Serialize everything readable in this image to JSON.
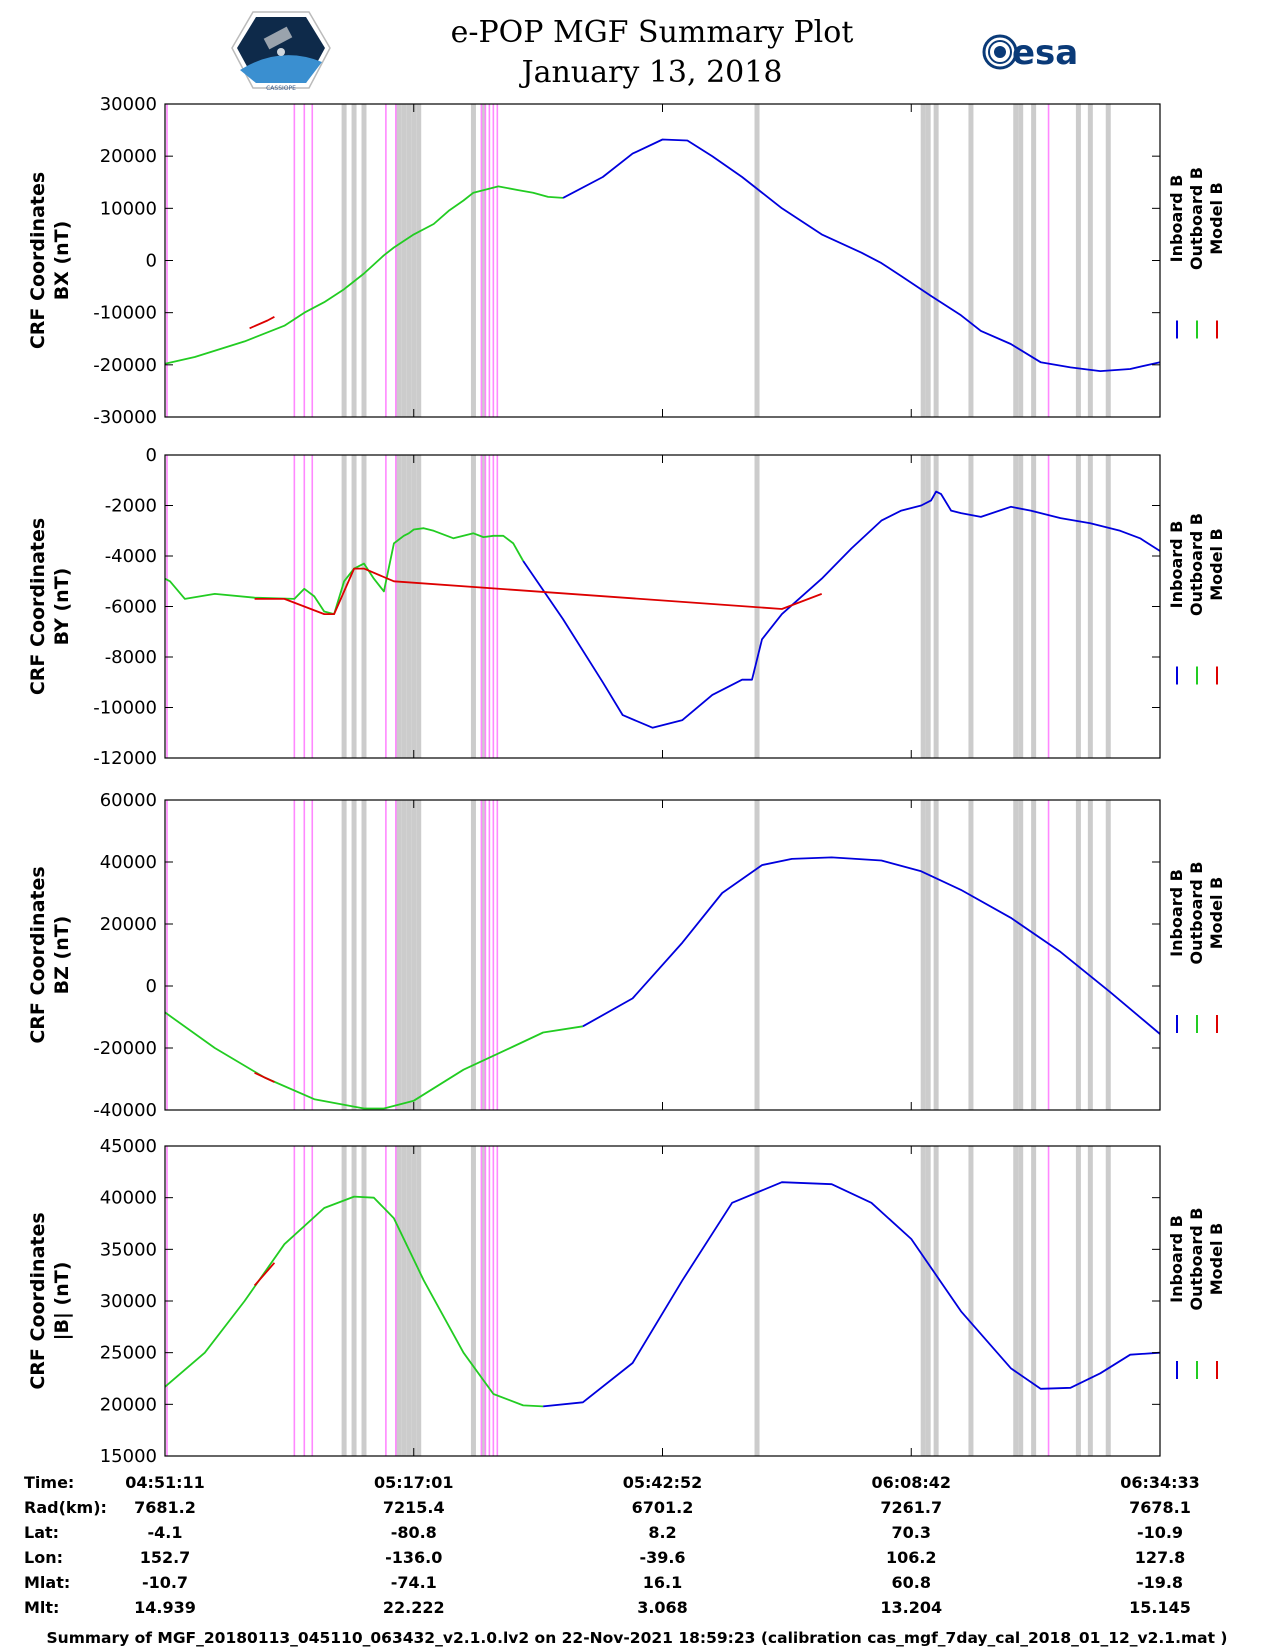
{
  "header": {
    "title": "e-POP MGF Summary Plot",
    "date": "January 13, 2018",
    "left_logo": "CASSIOPE",
    "right_logo": "esa"
  },
  "legend": [
    "Inboard B",
    "Outboard B",
    "Model B"
  ],
  "colors": {
    "inboard": "#0000dd",
    "outboard": "#22cc22",
    "model": "#dd0000",
    "gray_band": "#cccccc",
    "pink_line": "#ff88ff"
  },
  "chart_data": [
    {
      "type": "line",
      "ylabel": [
        "CRF Coordinates",
        "BX (nT)"
      ],
      "ylim": [
        -30000,
        30000
      ],
      "yticks": [
        30000,
        20000,
        10000,
        0,
        -10000,
        -20000,
        -30000
      ],
      "series": [
        {
          "name": "Outboard B",
          "x": [
            0,
            0.03,
            0.08,
            0.12,
            0.14,
            0.16,
            0.18,
            0.2,
            0.22,
            0.23,
            0.25,
            0.27,
            0.285,
            0.3,
            0.31,
            0.335,
            0.355,
            0.37,
            0.385,
            0.4
          ],
          "y": [
            -19800,
            -18500,
            -15500,
            -12500,
            -10000,
            -8000,
            -5500,
            -2500,
            1000,
            2500,
            5000,
            7000,
            9500,
            11500,
            13000,
            14200,
            13500,
            13000,
            12200,
            12000
          ]
        },
        {
          "name": "Inboard B",
          "x": [
            0.4,
            0.44,
            0.47,
            0.5,
            0.525,
            0.55,
            0.58,
            0.62,
            0.66,
            0.7,
            0.72,
            0.74,
            0.77,
            0.8,
            0.82,
            0.85,
            0.88,
            0.91,
            0.94,
            0.97,
            1.0
          ],
          "y": [
            12000,
            16000,
            20500,
            23200,
            23000,
            20000,
            16000,
            10000,
            5000,
            1500,
            -500,
            -3000,
            -6800,
            -10500,
            -13500,
            -16000,
            -19500,
            -20500,
            -21200,
            -20800,
            -19500
          ]
        },
        {
          "name": "Model B",
          "x": [
            0.085,
            0.103,
            0.11
          ],
          "y": [
            -13000,
            -11500,
            -10800
          ]
        }
      ]
    },
    {
      "type": "line",
      "ylabel": [
        "CRF Coordinates",
        "BY (nT)"
      ],
      "ylim": [
        -12000,
        0
      ],
      "yticks": [
        0,
        -2000,
        -4000,
        -6000,
        -8000,
        -10000,
        -12000
      ],
      "series": [
        {
          "name": "Outboard B",
          "x": [
            0,
            0.005,
            0.02,
            0.05,
            0.09,
            0.13,
            0.14,
            0.15,
            0.16,
            0.17,
            0.18,
            0.19,
            0.2,
            0.21,
            0.22,
            0.23,
            0.24,
            0.245,
            0.25,
            0.26,
            0.27,
            0.29,
            0.31,
            0.32,
            0.33,
            0.34,
            0.35,
            0.36
          ],
          "y": [
            -4900,
            -5000,
            -5700,
            -5500,
            -5650,
            -5700,
            -5300,
            -5600,
            -6200,
            -6300,
            -5000,
            -4500,
            -4300,
            -4900,
            -5400,
            -3500,
            -3200,
            -3100,
            -2950,
            -2900,
            -3000,
            -3300,
            -3100,
            -3250,
            -3200,
            -3200,
            -3500,
            -4200
          ]
        },
        {
          "name": "Inboard B",
          "x": [
            0.36,
            0.4,
            0.44,
            0.46,
            0.49,
            0.52,
            0.55,
            0.58,
            0.59,
            0.6,
            0.62,
            0.66,
            0.69,
            0.72,
            0.74,
            0.76,
            0.77,
            0.775,
            0.78,
            0.79,
            0.8,
            0.82,
            0.85,
            0.87,
            0.9,
            0.93,
            0.96,
            0.98,
            1.0
          ],
          "y": [
            -4200,
            -6500,
            -9000,
            -10300,
            -10800,
            -10500,
            -9500,
            -8900,
            -8900,
            -7300,
            -6300,
            -4900,
            -3700,
            -2600,
            -2200,
            -2000,
            -1800,
            -1450,
            -1550,
            -2200,
            -2300,
            -2450,
            -2050,
            -2200,
            -2500,
            -2700,
            -3000,
            -3300,
            -3800
          ]
        },
        {
          "name": "Model B",
          "x": [
            0.09,
            0.12,
            0.16,
            0.17,
            0.19,
            0.2,
            0.23,
            0.62,
            0.66
          ],
          "y": [
            -5700,
            -5700,
            -6300,
            -6300,
            -4500,
            -4500,
            -5000,
            -6100,
            -5500
          ]
        }
      ]
    },
    {
      "type": "line",
      "ylabel": [
        "CRF Coordinates",
        "BZ (nT)"
      ],
      "ylim": [
        -40000,
        60000
      ],
      "yticks": [
        60000,
        40000,
        20000,
        0,
        -20000,
        -40000
      ],
      "series": [
        {
          "name": "Outboard B",
          "x": [
            0,
            0.05,
            0.1,
            0.15,
            0.2,
            0.22,
            0.25,
            0.3,
            0.35,
            0.38,
            0.42
          ],
          "y": [
            -8500,
            -20000,
            -29500,
            -36500,
            -39500,
            -39500,
            -37000,
            -27000,
            -19500,
            -15000,
            -13000
          ]
        },
        {
          "name": "Inboard B",
          "x": [
            0.42,
            0.47,
            0.52,
            0.56,
            0.6,
            0.63,
            0.67,
            0.72,
            0.76,
            0.8,
            0.85,
            0.9,
            0.95,
            1.0
          ],
          "y": [
            -13000,
            -4000,
            14000,
            30000,
            39000,
            41000,
            41500,
            40500,
            37000,
            31000,
            22000,
            11000,
            -2000,
            -15500
          ]
        },
        {
          "name": "Model B",
          "x": [
            0.09,
            0.11
          ],
          "y": [
            -28000,
            -31000
          ]
        }
      ]
    },
    {
      "type": "line",
      "ylabel": [
        "CRF Coordinates",
        "|B| (nT)"
      ],
      "ylim": [
        15000,
        45000
      ],
      "yticks": [
        45000,
        40000,
        35000,
        30000,
        25000,
        20000,
        15000
      ],
      "series": [
        {
          "name": "Outboard B",
          "x": [
            0,
            0.04,
            0.08,
            0.12,
            0.16,
            0.19,
            0.21,
            0.23,
            0.26,
            0.3,
            0.33,
            0.36,
            0.38
          ],
          "y": [
            21700,
            25000,
            30000,
            35500,
            39000,
            40100,
            40000,
            38000,
            32000,
            25000,
            21000,
            19900,
            19800
          ]
        },
        {
          "name": "Inboard B",
          "x": [
            0.38,
            0.42,
            0.47,
            0.52,
            0.57,
            0.62,
            0.67,
            0.71,
            0.75,
            0.8,
            0.85,
            0.88,
            0.91,
            0.94,
            0.97,
            1.0
          ],
          "y": [
            19800,
            20200,
            24000,
            32000,
            39500,
            41500,
            41300,
            39500,
            36000,
            29000,
            23500,
            21500,
            21600,
            23000,
            24800,
            25000
          ]
        },
        {
          "name": "Model B",
          "x": [
            0.09,
            0.11
          ],
          "y": [
            31500,
            33700
          ]
        }
      ]
    }
  ],
  "vertical_markers": {
    "gray": [
      0.18,
      0.19,
      0.2,
      0.235,
      0.24,
      0.245,
      0.25,
      0.255,
      0.31,
      0.32,
      0.595,
      0.762,
      0.767,
      0.775,
      0.81,
      0.855,
      0.86,
      0.873,
      0.918,
      0.93,
      0.948
    ],
    "pink": [
      0.002,
      0.13,
      0.14,
      0.148,
      0.222,
      0.232,
      0.318,
      0.322,
      0.326,
      0.33,
      0.334,
      0.888
    ]
  },
  "time_table": {
    "rows": [
      {
        "label": "Time:",
        "values": [
          "04:51:11",
          "05:17:01",
          "05:42:52",
          "06:08:42",
          "06:34:33"
        ]
      },
      {
        "label": "Rad(km):",
        "values": [
          "7681.2",
          "7215.4",
          "6701.2",
          "7261.7",
          "7678.1"
        ]
      },
      {
        "label": "Lat:",
        "values": [
          "-4.1",
          "-80.8",
          "8.2",
          "70.3",
          "-10.9"
        ]
      },
      {
        "label": "Lon:",
        "values": [
          "152.7",
          "-136.0",
          "-39.6",
          "106.2",
          "127.8"
        ]
      },
      {
        "label": "Mlat:",
        "values": [
          "-10.7",
          "-74.1",
          "16.1",
          "60.8",
          "-19.8"
        ]
      },
      {
        "label": "Mlt:",
        "values": [
          "14.939",
          "22.222",
          "3.068",
          "13.204",
          "15.145"
        ]
      }
    ]
  },
  "footer": "Summary of MGF_20180113_045110_063432_v2.1.0.lv2 on 22-Nov-2021 18:59:23 (calibration cas_mgf_7day_cal_2018_01_12_v2.1.mat )"
}
